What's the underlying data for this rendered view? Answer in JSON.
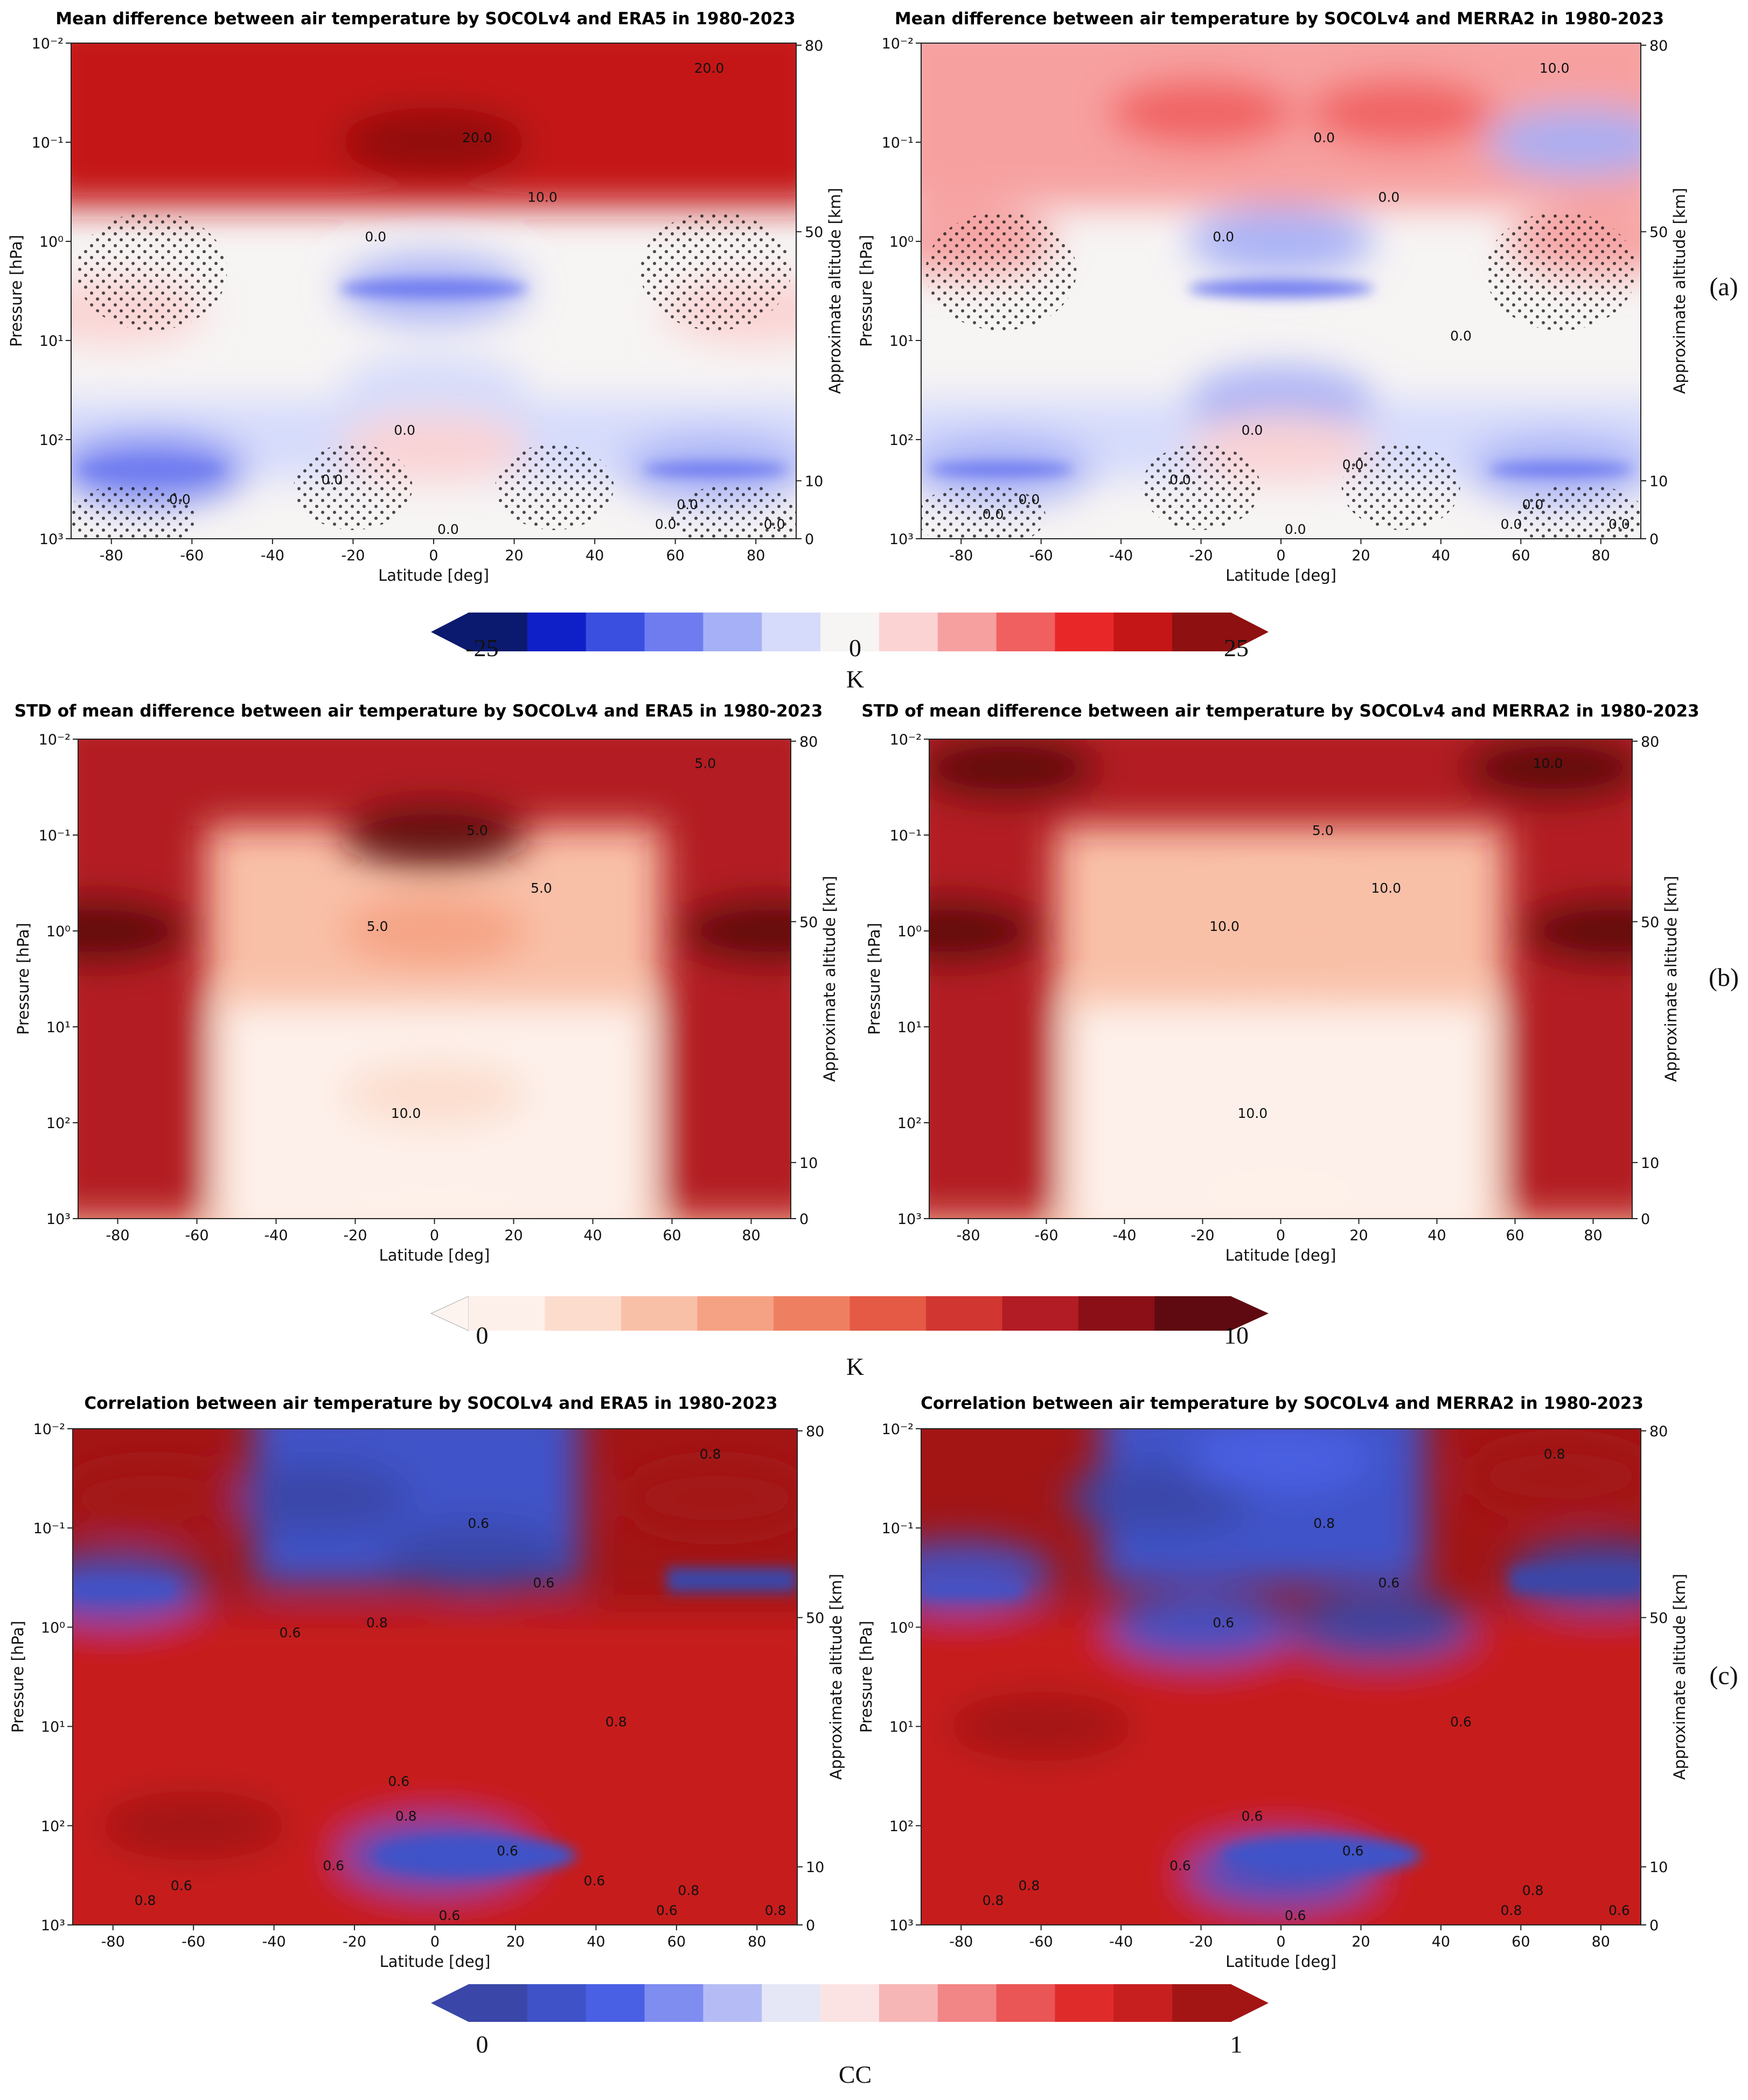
{
  "rows": [
    {
      "tag": "(a)",
      "colorbar": {
        "min_label": "-25",
        "mid_label": "0",
        "max_label": "25",
        "unit": "K",
        "colors": [
          "#0b1a6e",
          "#1020c8",
          "#3a4fe0",
          "#6f7cf0",
          "#a6b0f6",
          "#d6dbfb",
          "#f7f4f4",
          "#fbd3d3",
          "#f7a0a0",
          "#f06060",
          "#e82828",
          "#c41616",
          "#8e1010"
        ]
      },
      "panels": [
        {
          "title": "Mean difference between air temperature by SOCOLv4 and ERA5 in 1980-2023",
          "chart_data": {
            "type": "heatmap",
            "title": "Mean difference between air temperature by SOCOLv4 and ERA5 in 1980-2023",
            "xlabel": "Latitude [deg]",
            "ylabel": "Pressure [hPa]",
            "y2label": "Approximate altitude [km]",
            "xlim": [
              -90,
              90
            ],
            "ylim_hPa": [
              1000,
              0.01
            ],
            "y_scale": "log",
            "x_ticks": [
              "-80",
              "-60",
              "-40",
              "-20",
              "0",
              "20",
              "40",
              "60",
              "80"
            ],
            "y_ticks": [
              "10⁻²",
              "10⁻¹",
              "10⁰",
              "10¹",
              "10²",
              "10³"
            ],
            "y2_ticks": [
              "80",
              "50",
              "10",
              "0"
            ],
            "colorbar_range": [
              -25,
              25
            ],
            "unit": "K",
            "contour_labels": [
              "20.0",
              "20.0",
              "10.0",
              "0.0",
              "0.0",
              "0.0",
              "0.0",
              "0.0",
              "0.0",
              "0.0",
              "0.0"
            ],
            "stippling": "statistical significance",
            "value_fields": [
              {
                "lat": 0,
                "p_hPa": 0.1,
                "value": 22
              },
              {
                "lat": -60,
                "p_hPa": 0.03,
                "value": 18
              },
              {
                "lat": 60,
                "p_hPa": 0.03,
                "value": 21
              },
              {
                "lat": 0,
                "p_hPa": 3,
                "value": -8
              },
              {
                "lat": 0,
                "p_hPa": 30,
                "value": -5
              },
              {
                "lat": 0,
                "p_hPa": 120,
                "value": 2
              },
              {
                "lat": -70,
                "p_hPa": 200,
                "value": -10
              },
              {
                "lat": 70,
                "p_hPa": 200,
                "value": -8
              },
              {
                "lat": -80,
                "p_hPa": 5,
                "value": 3
              },
              {
                "lat": 80,
                "p_hPa": 5,
                "value": 3
              }
            ]
          }
        },
        {
          "title": "Mean difference between air temperature by SOCOLv4 and MERRA2 in 1980-2023",
          "chart_data": {
            "type": "heatmap",
            "title": "Mean difference between air temperature by SOCOLv4 and MERRA2 in 1980-2023",
            "xlabel": "Latitude [deg]",
            "ylabel": "Pressure [hPa]",
            "y2label": "Approximate altitude [km]",
            "xlim": [
              -90,
              90
            ],
            "ylim_hPa": [
              1000,
              0.01
            ],
            "y_scale": "log",
            "x_ticks": [
              "-80",
              "-60",
              "-40",
              "-20",
              "0",
              "20",
              "40",
              "60",
              "80"
            ],
            "y_ticks": [
              "10⁻²",
              "10⁻¹",
              "10⁰",
              "10¹",
              "10²",
              "10³"
            ],
            "y2_ticks": [
              "80",
              "50",
              "10",
              "0"
            ],
            "colorbar_range": [
              -25,
              25
            ],
            "unit": "K",
            "contour_labels": [
              "10.0",
              "0.0",
              "0.0",
              "0.0",
              "0.0",
              "0.0",
              "0.0",
              "0.0",
              "0.0",
              "0.0",
              "0.0",
              "0.0",
              "0.0",
              "0.0"
            ],
            "stippling": "statistical significance",
            "value_fields": [
              {
                "lat": -20,
                "p_hPa": 0.05,
                "value": 12
              },
              {
                "lat": 30,
                "p_hPa": 0.05,
                "value": 12
              },
              {
                "lat": 0,
                "p_hPa": 1,
                "value": -7
              },
              {
                "lat": 0,
                "p_hPa": 40,
                "value": -6
              },
              {
                "lat": -80,
                "p_hPa": 1,
                "value": 8
              },
              {
                "lat": 80,
                "p_hPa": 1,
                "value": 7
              },
              {
                "lat": 75,
                "p_hPa": 0.1,
                "value": -6
              },
              {
                "lat": -70,
                "p_hPa": 200,
                "value": -9
              },
              {
                "lat": 70,
                "p_hPa": 200,
                "value": -9
              },
              {
                "lat": 0,
                "p_hPa": 120,
                "value": 2
              }
            ]
          }
        }
      ]
    },
    {
      "tag": "(b)",
      "colorbar": {
        "min_label": "0",
        "max_label": "10",
        "unit": "K",
        "colors": [
          "#fdf0ea",
          "#fcdccd",
          "#f9c0a8",
          "#f5a183",
          "#ef7f61",
          "#e45a45",
          "#d23631",
          "#b21c24",
          "#8a0f17",
          "#5e0a10"
        ]
      },
      "panels": [
        {
          "title": "STD of mean difference between air temperature by SOCOLv4 and ERA5 in 1980-2023",
          "chart_data": {
            "type": "heatmap",
            "title": "STD of mean difference between air temperature by SOCOLv4 and ERA5 in 1980-2023",
            "xlabel": "Latitude [deg]",
            "ylabel": "Pressure [hPa]",
            "y2label": "Approximate altitude [km]",
            "xlim": [
              -90,
              90
            ],
            "ylim_hPa": [
              1000,
              0.01
            ],
            "y_scale": "log",
            "x_ticks": [
              "-80",
              "-60",
              "-40",
              "-20",
              "0",
              "20",
              "40",
              "60",
              "80"
            ],
            "y_ticks": [
              "10⁻²",
              "10⁻¹",
              "10⁰",
              "10¹",
              "10²",
              "10³"
            ],
            "y2_ticks": [
              "80",
              "50",
              "10",
              "0"
            ],
            "colorbar_range": [
              0,
              10
            ],
            "unit": "K",
            "contour_labels": [
              "5.0",
              "5.0",
              "5.0",
              "5.0",
              "10.0"
            ],
            "value_fields": [
              {
                "lat": 0,
                "p_hPa": 0.1,
                "value": 9
              },
              {
                "lat": -85,
                "p_hPa": 1,
                "value": 10
              },
              {
                "lat": 85,
                "p_hPa": 1,
                "value": 11
              },
              {
                "lat": 0,
                "p_hPa": 50,
                "value": 1
              },
              {
                "lat": 0,
                "p_hPa": 800,
                "value": 0.5
              },
              {
                "lat": 0,
                "p_hPa": 1,
                "value": 3
              }
            ]
          }
        },
        {
          "title": "STD of mean difference between air temperature by SOCOLv4 and MERRA2 in 1980-2023",
          "chart_data": {
            "type": "heatmap",
            "title": "STD of mean difference between air temperature by SOCOLv4 and MERRA2 in 1980-2023",
            "xlabel": "Latitude [deg]",
            "ylabel": "Pressure [hPa]",
            "y2label": "Approximate altitude [km]",
            "xlim": [
              -90,
              90
            ],
            "ylim_hPa": [
              1000,
              0.01
            ],
            "y_scale": "log",
            "x_ticks": [
              "-80",
              "-60",
              "-40",
              "-20",
              "0",
              "20",
              "40",
              "60",
              "80"
            ],
            "y_ticks": [
              "10⁻²",
              "10⁻¹",
              "10⁰",
              "10¹",
              "10²",
              "10³"
            ],
            "y2_ticks": [
              "80",
              "50",
              "10",
              "0"
            ],
            "colorbar_range": [
              0,
              10
            ],
            "unit": "K",
            "contour_labels": [
              "10.0",
              "5.0",
              "10.0",
              "10.0",
              "10.0"
            ],
            "value_fields": [
              {
                "lat": -85,
                "p_hPa": 1,
                "value": 11
              },
              {
                "lat": 85,
                "p_hPa": 1,
                "value": 11
              },
              {
                "lat": -70,
                "p_hPa": 0.02,
                "value": 10
              },
              {
                "lat": 70,
                "p_hPa": 0.02,
                "value": 10
              },
              {
                "lat": 0,
                "p_hPa": 1,
                "value": 2
              },
              {
                "lat": 0,
                "p_hPa": 500,
                "value": 0.5
              }
            ]
          }
        }
      ]
    },
    {
      "tag": "(c)",
      "colorbar": {
        "min_label": "0",
        "max_label": "1",
        "unit": "CC",
        "colors": [
          "#3a47a8",
          "#3f52c8",
          "#4a60e4",
          "#7f8cf0",
          "#b5bcf5",
          "#e6e7f6",
          "#fbe3e3",
          "#f7b6b6",
          "#f28585",
          "#ea5555",
          "#e02b2b",
          "#c71f1f",
          "#a31515"
        ]
      },
      "panels": [
        {
          "title": "Correlation between air temperature by SOCOLv4 and ERA5 in 1980-2023",
          "chart_data": {
            "type": "heatmap",
            "title": "Correlation between air temperature by SOCOLv4 and ERA5 in 1980-2023",
            "xlabel": "Latitude [deg]",
            "ylabel": "Pressure [hPa]",
            "y2label": "Approximate altitude [km]",
            "xlim": [
              -90,
              90
            ],
            "ylim_hPa": [
              1000,
              0.01
            ],
            "y_scale": "log",
            "x_ticks": [
              "-80",
              "-60",
              "-40",
              "-20",
              "0",
              "20",
              "40",
              "60",
              "80"
            ],
            "y_ticks": [
              "10⁻²",
              "10⁻¹",
              "10⁰",
              "10¹",
              "10²",
              "10³"
            ],
            "y2_ticks": [
              "80",
              "50",
              "10",
              "0"
            ],
            "colorbar_range": [
              0,
              1
            ],
            "unit": "CC",
            "contour_labels": [
              "0.8",
              "0.6",
              "0.6",
              "0.8",
              "0.8",
              "0.6",
              "0.6",
              "0.6",
              "0.8",
              "0.6",
              "0.8",
              "0.8",
              "0.6",
              "0.8",
              "0.6",
              "0.6",
              "0.6"
            ],
            "value_fields": [
              {
                "lat": -30,
                "p_hPa": 0.05,
                "value": 0.0
              },
              {
                "lat": 10,
                "p_hPa": 0.2,
                "value": 0.05
              },
              {
                "lat": -70,
                "p_hPa": 0.05,
                "value": 0.95
              },
              {
                "lat": 70,
                "p_hPa": 0.05,
                "value": 0.95
              },
              {
                "lat": -80,
                "p_hPa": 0.4,
                "value": 0.1
              },
              {
                "lat": 0,
                "p_hPa": 10,
                "value": 0.9
              },
              {
                "lat": 0,
                "p_hPa": 200,
                "value": 0.1
              },
              {
                "lat": -60,
                "p_hPa": 100,
                "value": 0.95
              }
            ]
          }
        },
        {
          "title": "Correlation between air temperature by SOCOLv4 and MERRA2 in 1980-2023",
          "chart_data": {
            "type": "heatmap",
            "title": "Correlation between air temperature by SOCOLv4 and MERRA2 in 1980-2023",
            "xlabel": "Latitude [deg]",
            "ylabel": "Pressure [hPa]",
            "y2label": "Approximate altitude [km]",
            "xlim": [
              -90,
              90
            ],
            "ylim_hPa": [
              1000,
              0.01
            ],
            "y_scale": "log",
            "x_ticks": [
              "-80",
              "-60",
              "-40",
              "-20",
              "0",
              "20",
              "40",
              "60",
              "80"
            ],
            "y_ticks": [
              "10⁻²",
              "10⁻¹",
              "10⁰",
              "10¹",
              "10²",
              "10³"
            ],
            "y2_ticks": [
              "80",
              "50",
              "10",
              "0"
            ],
            "colorbar_range": [
              0,
              1
            ],
            "unit": "CC",
            "contour_labels": [
              "0.8",
              "0.8",
              "0.6",
              "0.6",
              "0.6",
              "0.6",
              "0.8",
              "0.6",
              "0.8",
              "0.8",
              "0.6",
              "0.8",
              "0.6",
              "0.6"
            ],
            "value_fields": [
              {
                "lat": -30,
                "p_hPa": 0.05,
                "value": 0.0
              },
              {
                "lat": 0,
                "p_hPa": 0.02,
                "value": 0.2
              },
              {
                "lat": -80,
                "p_hPa": 0.3,
                "value": 0.1
              },
              {
                "lat": 80,
                "p_hPa": 0.3,
                "value": 0.0
              },
              {
                "lat": -20,
                "p_hPa": 1,
                "value": 0.1
              },
              {
                "lat": 25,
                "p_hPa": 1,
                "value": 0.05
              },
              {
                "lat": 0,
                "p_hPa": 300,
                "value": 0.1
              },
              {
                "lat": -60,
                "p_hPa": 10,
                "value": 0.95
              },
              {
                "lat": 70,
                "p_hPa": 0.03,
                "value": 0.95
              }
            ]
          }
        }
      ]
    }
  ]
}
